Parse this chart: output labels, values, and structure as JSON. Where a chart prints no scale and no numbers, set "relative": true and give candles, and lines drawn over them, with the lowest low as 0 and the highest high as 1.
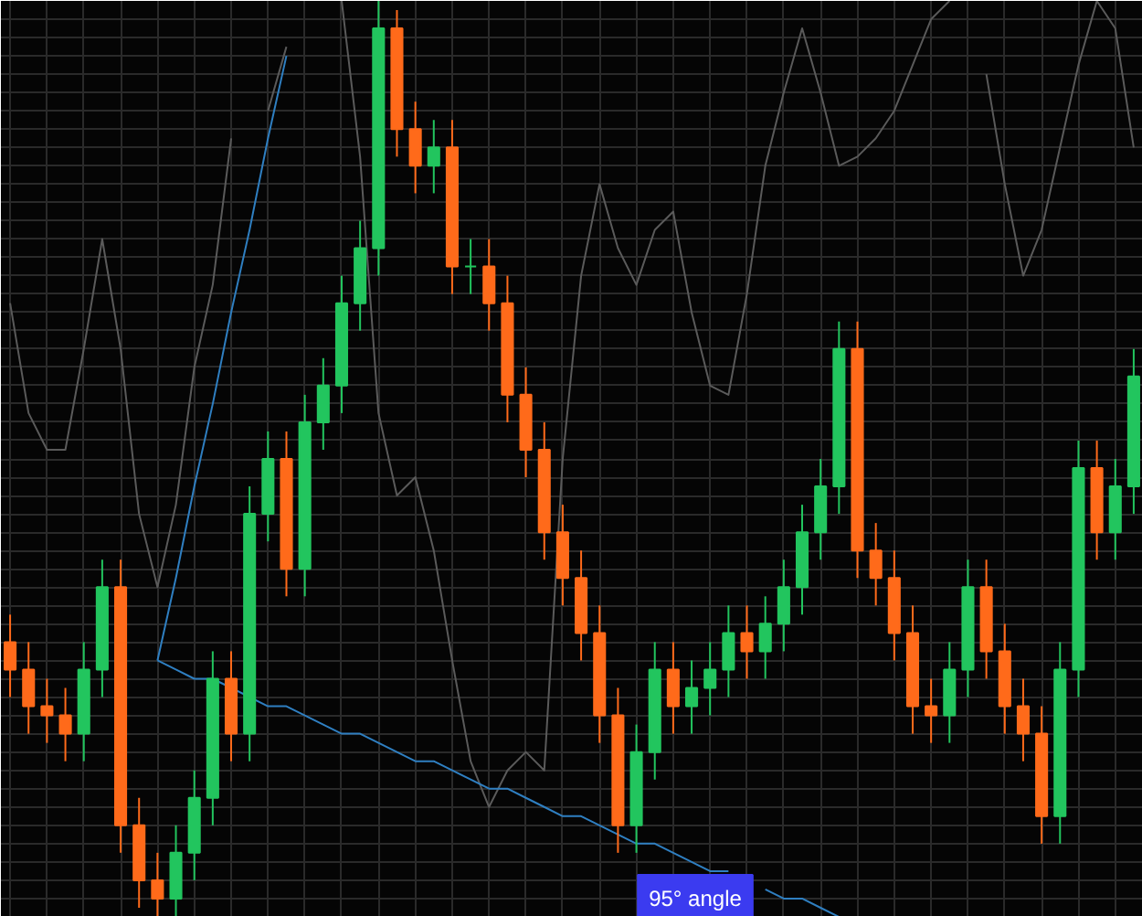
{
  "chart_data": {
    "type": "candlestick",
    "relative": true,
    "grid": true,
    "categories": [
      null,
      null,
      null,
      null,
      null,
      null,
      null,
      null,
      null,
      null,
      null,
      null,
      null,
      null,
      null,
      null,
      null,
      null,
      null,
      null,
      null,
      null,
      null,
      null,
      null,
      null,
      null,
      null,
      null,
      null,
      null,
      null,
      null,
      null,
      null,
      null,
      null,
      null,
      null,
      null,
      null,
      null,
      null,
      null,
      null,
      null,
      null,
      null,
      null,
      null,
      null,
      null,
      null,
      null,
      null,
      null,
      null,
      null,
      null,
      null,
      null,
      null
    ],
    "ohlc": [
      [
        0.3,
        0.33,
        0.24,
        0.27
      ],
      [
        0.27,
        0.3,
        0.2,
        0.23
      ],
      [
        0.23,
        0.26,
        0.19,
        0.22
      ],
      [
        0.22,
        0.25,
        0.17,
        0.2
      ],
      [
        0.2,
        0.3,
        0.17,
        0.27
      ],
      [
        0.27,
        0.39,
        0.24,
        0.36
      ],
      [
        0.36,
        0.39,
        0.07,
        0.1
      ],
      [
        0.1,
        0.13,
        0.01,
        0.04
      ],
      [
        0.04,
        0.07,
        0.0,
        0.02
      ],
      [
        0.02,
        0.1,
        0.0,
        0.07
      ],
      [
        0.07,
        0.16,
        0.04,
        0.13
      ],
      [
        0.13,
        0.29,
        0.1,
        0.26
      ],
      [
        0.26,
        0.29,
        0.17,
        0.2
      ],
      [
        0.2,
        0.47,
        0.17,
        0.44
      ],
      [
        0.44,
        0.53,
        0.41,
        0.5
      ],
      [
        0.5,
        0.53,
        0.35,
        0.38
      ],
      [
        0.38,
        0.57,
        0.35,
        0.54
      ],
      [
        0.54,
        0.61,
        0.51,
        0.58
      ],
      [
        0.58,
        0.7,
        0.55,
        0.67
      ],
      [
        0.67,
        0.76,
        0.64,
        0.73
      ],
      [
        0.73,
        1.0,
        0.7,
        0.97
      ],
      [
        0.97,
        0.99,
        0.83,
        0.86
      ],
      [
        0.86,
        0.89,
        0.79,
        0.82
      ],
      [
        0.82,
        0.87,
        0.79,
        0.84
      ],
      [
        0.84,
        0.87,
        0.68,
        0.71
      ],
      [
        0.71,
        0.74,
        0.68,
        0.71
      ],
      [
        0.71,
        0.74,
        0.64,
        0.67
      ],
      [
        0.67,
        0.7,
        0.54,
        0.57
      ],
      [
        0.57,
        0.6,
        0.48,
        0.51
      ],
      [
        0.51,
        0.54,
        0.39,
        0.42
      ],
      [
        0.42,
        0.45,
        0.34,
        0.37
      ],
      [
        0.37,
        0.4,
        0.28,
        0.31
      ],
      [
        0.31,
        0.34,
        0.19,
        0.22
      ],
      [
        0.22,
        0.25,
        0.07,
        0.1
      ],
      [
        0.1,
        0.21,
        0.07,
        0.18
      ],
      [
        0.18,
        0.3,
        0.15,
        0.27
      ],
      [
        0.27,
        0.3,
        0.2,
        0.23
      ],
      [
        0.23,
        0.28,
        0.2,
        0.25
      ],
      [
        0.25,
        0.3,
        0.22,
        0.27
      ],
      [
        0.27,
        0.34,
        0.24,
        0.31
      ],
      [
        0.31,
        0.34,
        0.26,
        0.29
      ],
      [
        0.29,
        0.35,
        0.26,
        0.32
      ],
      [
        0.32,
        0.39,
        0.29,
        0.36
      ],
      [
        0.36,
        0.45,
        0.33,
        0.42
      ],
      [
        0.42,
        0.5,
        0.39,
        0.47
      ],
      [
        0.47,
        0.65,
        0.44,
        0.62
      ],
      [
        0.62,
        0.65,
        0.37,
        0.4
      ],
      [
        0.4,
        0.43,
        0.34,
        0.37
      ],
      [
        0.37,
        0.4,
        0.28,
        0.31
      ],
      [
        0.31,
        0.34,
        0.2,
        0.23
      ],
      [
        0.23,
        0.26,
        0.19,
        0.22
      ],
      [
        0.22,
        0.3,
        0.19,
        0.27
      ],
      [
        0.27,
        0.39,
        0.24,
        0.36
      ],
      [
        0.36,
        0.39,
        0.26,
        0.29
      ],
      [
        0.29,
        0.32,
        0.2,
        0.23
      ],
      [
        0.23,
        0.26,
        0.17,
        0.2
      ],
      [
        0.2,
        0.23,
        0.08,
        0.11
      ],
      [
        0.11,
        0.3,
        0.08,
        0.27
      ],
      [
        0.27,
        0.52,
        0.24,
        0.49
      ],
      [
        0.49,
        0.52,
        0.39,
        0.42
      ],
      [
        0.42,
        0.5,
        0.39,
        0.47
      ],
      [
        0.47,
        0.62,
        0.44,
        0.59
      ]
    ],
    "colors": [
      "#ff6a1a",
      "#ff6a1a",
      "#ff6a1a",
      "#ff6a1a",
      "#22c55e",
      "#22c55e",
      "#ff6a1a",
      "#ff6a1a",
      "#ff6a1a",
      "#22c55e",
      "#22c55e",
      "#22c55e",
      "#ff6a1a",
      "#22c55e",
      "#22c55e",
      "#ff6a1a",
      "#22c55e",
      "#22c55e",
      "#22c55e",
      "#22c55e",
      "#22c55e",
      "#ff6a1a",
      "#ff6a1a",
      "#22c55e",
      "#ff6a1a",
      "#22c55e",
      "#ff6a1a",
      "#ff6a1a",
      "#ff6a1a",
      "#ff6a1a",
      "#ff6a1a",
      "#ff6a1a",
      "#ff6a1a",
      "#ff6a1a",
      "#22c55e",
      "#22c55e",
      "#ff6a1a",
      "#22c55e",
      "#22c55e",
      "#22c55e",
      "#ff6a1a",
      "#22c55e",
      "#22c55e",
      "#22c55e",
      "#22c55e",
      "#22c55e",
      "#ff6a1a",
      "#ff6a1a",
      "#ff6a1a",
      "#ff6a1a",
      "#ff6a1a",
      "#22c55e",
      "#22c55e",
      "#ff6a1a",
      "#ff6a1a",
      "#ff6a1a",
      "#ff6a1a",
      "#22c55e",
      "#22c55e",
      "#ff6a1a",
      "#22c55e",
      "#22c55e"
    ],
    "series": [
      {
        "type": "line",
        "color": "#5a5a5a",
        "values": [
          0.67,
          0.55,
          0.51,
          0.51,
          0.62,
          0.74,
          0.62,
          0.44,
          0.36,
          0.45,
          0.6,
          0.69,
          0.85,
          null,
          0.88,
          0.95,
          null,
          null,
          1.0,
          0.83,
          0.55,
          0.46,
          0.48,
          0.4,
          0.28,
          0.17,
          0.12,
          0.16,
          0.18,
          0.16,
          0.5,
          0.7,
          0.8,
          0.73,
          0.69,
          0.75,
          0.77,
          0.66,
          0.58,
          0.57,
          0.68,
          0.82,
          0.9,
          0.97,
          0.9,
          0.82,
          0.83,
          0.85,
          0.88,
          0.93,
          0.98,
          1.0,
          null,
          0.92,
          0.8,
          0.7,
          0.75,
          0.84,
          0.93,
          1.0,
          0.97,
          0.84
        ]
      },
      {
        "type": "line",
        "color": "#2f7fc1",
        "values": [
          null,
          null,
          null,
          null,
          null,
          null,
          null,
          null,
          0.28,
          0.37,
          0.47,
          0.56,
          0.66,
          0.75,
          0.85,
          0.94,
          null,
          null,
          null,
          null,
          null,
          null,
          null,
          null,
          null,
          null,
          null,
          null,
          null,
          null,
          null,
          null,
          null,
          null,
          null,
          null,
          null,
          null,
          null,
          null,
          null,
          null,
          null,
          null,
          null,
          null,
          null,
          null,
          null,
          null,
          null,
          null,
          null,
          null,
          null,
          null,
          null,
          null,
          null,
          null,
          null,
          null
        ]
      },
      {
        "type": "line",
        "color": "#2f7fc1",
        "values": [
          null,
          null,
          null,
          null,
          null,
          null,
          null,
          null,
          0.28,
          0.27,
          0.26,
          0.26,
          0.25,
          0.24,
          0.23,
          0.23,
          0.22,
          0.21,
          0.2,
          0.2,
          0.19,
          0.18,
          0.17,
          0.17,
          0.16,
          0.15,
          0.14,
          0.14,
          0.13,
          0.12,
          0.11,
          0.11,
          0.1,
          0.09,
          0.08,
          0.08,
          0.07,
          0.06,
          0.05,
          0.05,
          null,
          0.03,
          0.02,
          0.02,
          0.01,
          0.0,
          null,
          null,
          null,
          null,
          null,
          null,
          null,
          null,
          null,
          null,
          null,
          null,
          null,
          null,
          null,
          null
        ]
      }
    ],
    "tick_labels": false,
    "annotations": [
      "95° angle"
    ]
  }
}
